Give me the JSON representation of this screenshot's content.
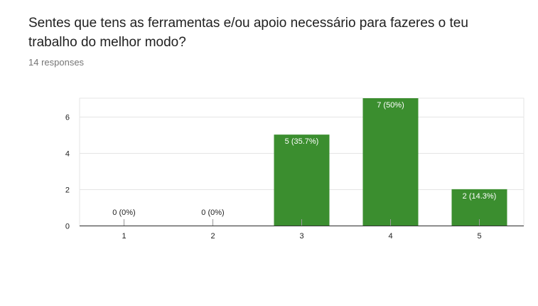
{
  "header": {
    "title": "Sentes que tens as ferramentas e/ou apoio necessário para fazeres o teu trabalho do melhor modo?",
    "responses": "14 responses"
  },
  "colors": {
    "bar": "#3b8e2f",
    "grid": "#e5e5e5",
    "axis": "#333333"
  },
  "chart_data": {
    "type": "bar",
    "title": "Sentes que tens as ferramentas e/ou apoio necessário para fazeres o teu trabalho do melhor modo?",
    "categories": [
      "1",
      "2",
      "3",
      "4",
      "5"
    ],
    "values": [
      0,
      0,
      5,
      7,
      2
    ],
    "labels": [
      "0 (0%)",
      "0 (0%)",
      "5 (35.7%)",
      "7 (50%)",
      "2 (14.3%)"
    ],
    "ylim": [
      0,
      7
    ],
    "yticks": [
      0,
      2,
      4,
      6
    ],
    "grid": true,
    "legend": "none"
  }
}
